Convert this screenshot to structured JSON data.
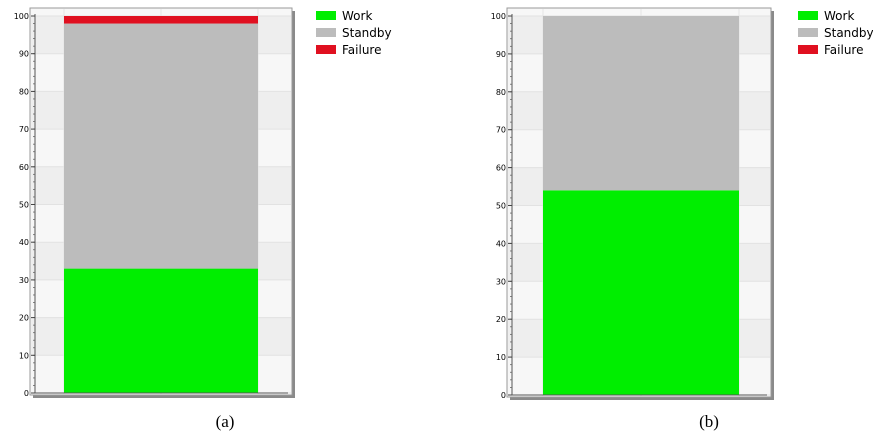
{
  "colors": {
    "Work": "#00ee00",
    "Standby": "#bcbcbc",
    "Failure": "#e01020"
  },
  "chart_data": [
    {
      "type": "bar",
      "stacked": true,
      "caption": "(a)",
      "categories": [
        ""
      ],
      "series": [
        {
          "name": "Work",
          "values": [
            33
          ]
        },
        {
          "name": "Standby",
          "values": [
            65
          ]
        },
        {
          "name": "Failure",
          "values": [
            2
          ]
        }
      ],
      "ylim": [
        0,
        100
      ],
      "yticks": [
        "0",
        "10",
        "20",
        "30",
        "40",
        "50",
        "60",
        "70",
        "80",
        "90",
        "100"
      ],
      "grid": true,
      "legend": "top-right",
      "xlabel": "",
      "ylabel": ""
    },
    {
      "type": "bar",
      "stacked": true,
      "caption": "(b)",
      "categories": [
        ""
      ],
      "series": [
        {
          "name": "Work",
          "values": [
            54
          ]
        },
        {
          "name": "Standby",
          "values": [
            46
          ]
        },
        {
          "name": "Failure",
          "values": [
            0
          ]
        }
      ],
      "ylim": [
        0,
        100
      ],
      "yticks": [
        "0",
        "10",
        "20",
        "30",
        "40",
        "50",
        "60",
        "70",
        "80",
        "90",
        "100"
      ],
      "grid": true,
      "legend": "top-right",
      "xlabel": "",
      "ylabel": ""
    }
  ]
}
